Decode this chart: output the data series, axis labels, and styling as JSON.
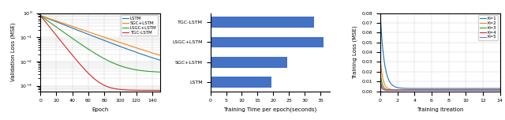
{
  "plot1": {
    "xlabel": "Epoch",
    "ylabel": "Validation Loss (MSE)",
    "xlim": [
      0,
      150
    ],
    "ylim_log": [
      0.0006,
      1.0
    ],
    "legend_labels": [
      "LSTM",
      "SGC+LSTM",
      "LSGC+LSTM",
      "TGC-LSTM"
    ],
    "legend_colors": [
      "#1f77b4",
      "#ff7f0e",
      "#2ca02c",
      "#d62728"
    ],
    "lstm_params": [
      0.8,
      0.0026,
      0.03
    ],
    "sgc_params": [
      0.8,
      0.002,
      0.026
    ],
    "lsgc_params": [
      0.8,
      0.0035,
      0.055
    ],
    "tgc_params": [
      0.8,
      0.00065,
      0.095
    ]
  },
  "plot2": {
    "xlabel": "Training Time per epoch(seconds)",
    "categories": [
      "LSTM",
      "SGC+LSTM",
      "LSGC+LSTM",
      "TGC-LSTM"
    ],
    "values": [
      19.5,
      24.5,
      36.0,
      33.0
    ],
    "bar_color": "#4472c4",
    "xlim": [
      0,
      38
    ],
    "xticks": [
      0,
      5,
      10,
      15,
      20,
      25,
      30,
      35
    ]
  },
  "plot3": {
    "xlabel": "Training Itreation",
    "ylabel": "Training Loss (MSE)",
    "xlim": [
      0,
      14
    ],
    "ylim": [
      0.0,
      0.08
    ],
    "yticks": [
      0.0,
      0.01,
      0.02,
      0.03,
      0.04,
      0.05,
      0.06,
      0.07,
      0.08
    ],
    "legend_labels": [
      "K=1",
      "K=2",
      "K=3",
      "K=4",
      "K=5"
    ],
    "legend_colors": [
      "#1f77b4",
      "#ff7f0e",
      "#2ca02c",
      "#d62728",
      "#9467bd"
    ],
    "starts": [
      0.08,
      0.034,
      0.019,
      0.011,
      0.008
    ],
    "ends": [
      0.0028,
      0.0015,
      0.0012,
      0.001,
      0.001
    ],
    "rates": [
      2.2,
      3.5,
      4.5,
      5.5,
      6.5
    ]
  }
}
